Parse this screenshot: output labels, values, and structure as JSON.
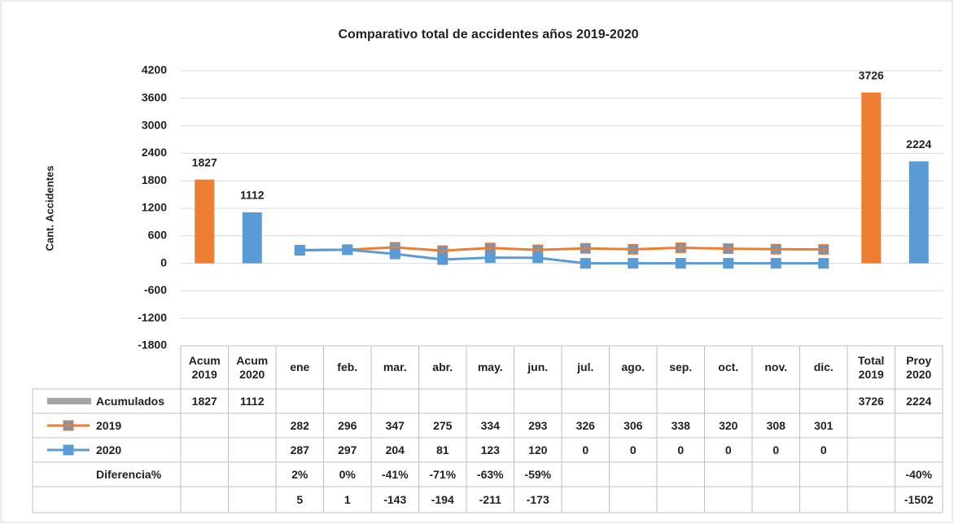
{
  "chart_data": {
    "type": "bar_line",
    "title": "Comparativo total de accidentes años 2019-2020",
    "y_label": "Cant. Accidentes",
    "categories": [
      "Acum 2019",
      "Acum 2020",
      "ene",
      "feb.",
      "mar.",
      "abr.",
      "may.",
      "jun.",
      "jul.",
      "ago.",
      "sep.",
      "oct.",
      "nov.",
      "dic.",
      "Total 2019",
      "Proy 2020"
    ],
    "ylim": [
      -1800,
      4200
    ],
    "yticks": [
      -1800,
      -1200,
      -600,
      0,
      600,
      1200,
      1800,
      2400,
      3000,
      3600,
      4200
    ],
    "grid": true,
    "series": [
      {
        "name": "Acumulados",
        "type": "bar",
        "color": "#a5a5a5",
        "point_colors": [
          "#ed7d31",
          "#5b9bd5",
          null,
          null,
          null,
          null,
          null,
          null,
          null,
          null,
          null,
          null,
          null,
          null,
          "#ed7d31",
          "#5b9bd5"
        ],
        "values": [
          1827,
          1112,
          null,
          null,
          null,
          null,
          null,
          null,
          null,
          null,
          null,
          null,
          null,
          null,
          3726,
          2224
        ]
      },
      {
        "name": "2019",
        "type": "line",
        "color": "#ed7d31",
        "values": [
          null,
          null,
          282,
          296,
          347,
          275,
          334,
          293,
          326,
          306,
          338,
          320,
          308,
          301,
          null,
          null
        ]
      },
      {
        "name": "2020",
        "type": "line",
        "color": "#5b9bd5",
        "values": [
          null,
          null,
          287,
          297,
          204,
          81,
          123,
          120,
          0,
          0,
          0,
          0,
          0,
          0,
          null,
          null
        ]
      }
    ],
    "table_rows": [
      {
        "name": "Diferencia%",
        "values": [
          null,
          null,
          2,
          0,
          -41,
          -71,
          -63,
          -59,
          null,
          null,
          null,
          null,
          null,
          null,
          null,
          -40
        ],
        "value_labels": [
          null,
          null,
          "2%",
          "0%",
          "-41%",
          "-71%",
          "-63%",
          "-59%",
          null,
          null,
          null,
          null,
          null,
          null,
          null,
          "-40%"
        ]
      },
      {
        "name": null,
        "values": [
          null,
          null,
          5,
          1,
          -143,
          -194,
          -211,
          -173,
          null,
          null,
          null,
          null,
          null,
          null,
          null,
          -1502
        ]
      }
    ]
  }
}
